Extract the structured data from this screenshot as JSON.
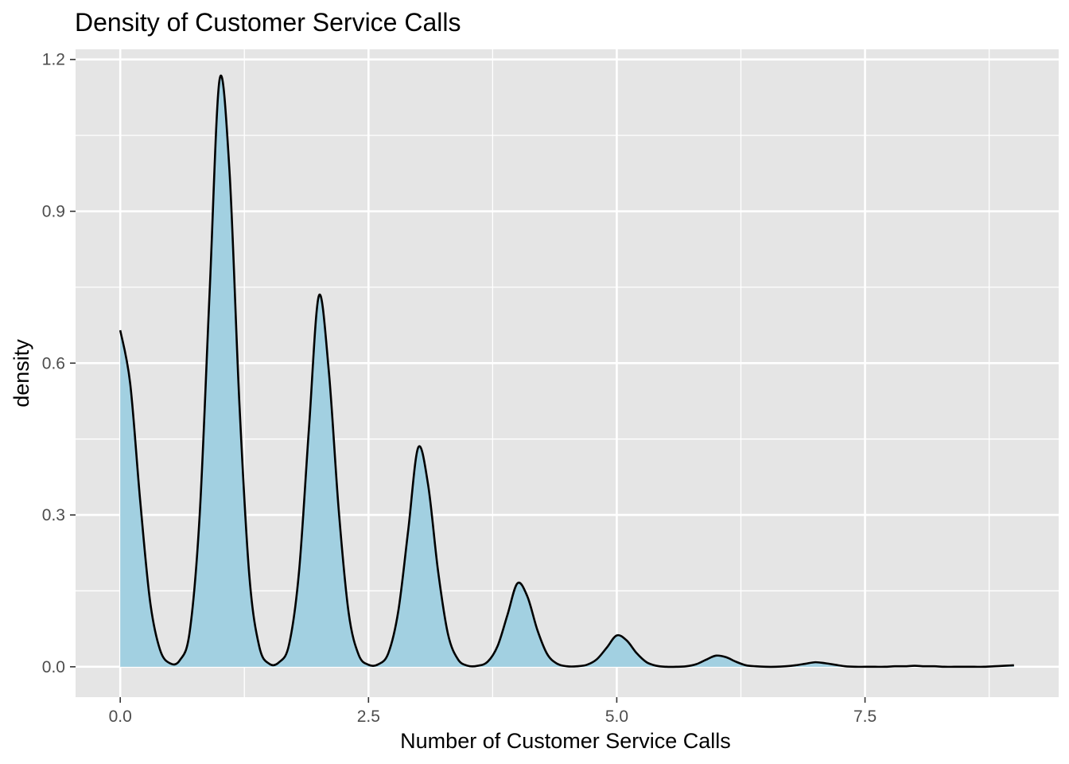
{
  "chart_data": {
    "type": "area",
    "title": "Density of Customer Service Calls",
    "xlabel": "Number of Customer Service Calls",
    "ylabel": "density",
    "xlim": [
      -0.45,
      9.45
    ],
    "ylim": [
      -0.06,
      1.22
    ],
    "x_ticks": [
      0.0,
      2.5,
      5.0,
      7.5
    ],
    "x_tick_labels": [
      "0.0",
      "2.5",
      "5.0",
      "7.5"
    ],
    "y_ticks": [
      0.0,
      0.3,
      0.6,
      0.9,
      1.2
    ],
    "y_tick_labels": [
      "0.0",
      "0.3",
      "0.6",
      "0.9",
      "1.2"
    ],
    "grid": true,
    "fill_color": "#a2d0e1",
    "line_color": "#000000",
    "panel_color": "#e5e5e5",
    "series": [
      {
        "x": [
          0.0,
          0.1,
          0.2,
          0.3,
          0.4,
          0.5,
          0.6,
          0.7,
          0.8,
          0.9,
          1.0,
          1.1,
          1.2,
          1.3,
          1.4,
          1.5,
          1.6,
          1.7,
          1.8,
          1.9,
          2.0,
          2.1,
          2.2,
          2.3,
          2.4,
          2.5,
          2.6,
          2.7,
          2.8,
          2.9,
          3.0,
          3.1,
          3.2,
          3.3,
          3.4,
          3.5,
          3.6,
          3.7,
          3.8,
          3.9,
          4.0,
          4.1,
          4.2,
          4.3,
          4.4,
          4.5,
          4.6,
          4.7,
          4.8,
          4.9,
          5.0,
          5.1,
          5.2,
          5.3,
          5.4,
          5.5,
          5.6,
          5.7,
          5.8,
          5.9,
          6.0,
          6.1,
          6.2,
          6.3,
          6.4,
          6.5,
          6.6,
          6.7,
          6.8,
          6.9,
          7.0,
          7.1,
          7.2,
          7.3,
          7.4,
          7.5,
          7.6,
          7.7,
          7.8,
          7.9,
          8.0,
          8.1,
          8.2,
          8.3,
          8.4,
          8.5,
          8.6,
          8.7,
          8.8,
          8.9,
          9.0
        ],
        "y": [
          0.665,
          0.56,
          0.33,
          0.13,
          0.034,
          0.007,
          0.013,
          0.07,
          0.3,
          0.74,
          1.16,
          0.98,
          0.52,
          0.18,
          0.04,
          0.006,
          0.009,
          0.044,
          0.187,
          0.47,
          0.733,
          0.585,
          0.31,
          0.107,
          0.024,
          0.004,
          0.005,
          0.027,
          0.11,
          0.27,
          0.433,
          0.36,
          0.19,
          0.065,
          0.015,
          0.002,
          0.002,
          0.01,
          0.041,
          0.103,
          0.165,
          0.139,
          0.073,
          0.025,
          0.006,
          0.001,
          0.001,
          0.004,
          0.015,
          0.038,
          0.062,
          0.052,
          0.027,
          0.009,
          0.002,
          0.0,
          0.0,
          0.001,
          0.005,
          0.014,
          0.022,
          0.019,
          0.01,
          0.003,
          0.001,
          0.0,
          0.0,
          0.001,
          0.003,
          0.006,
          0.009,
          0.007,
          0.004,
          0.001,
          0.0,
          0.0,
          0.0,
          0.0,
          0.001,
          0.001,
          0.002,
          0.001,
          0.001,
          0.0,
          0.0,
          0.0,
          0.0,
          0.0,
          0.001,
          0.002,
          0.003
        ]
      }
    ]
  }
}
